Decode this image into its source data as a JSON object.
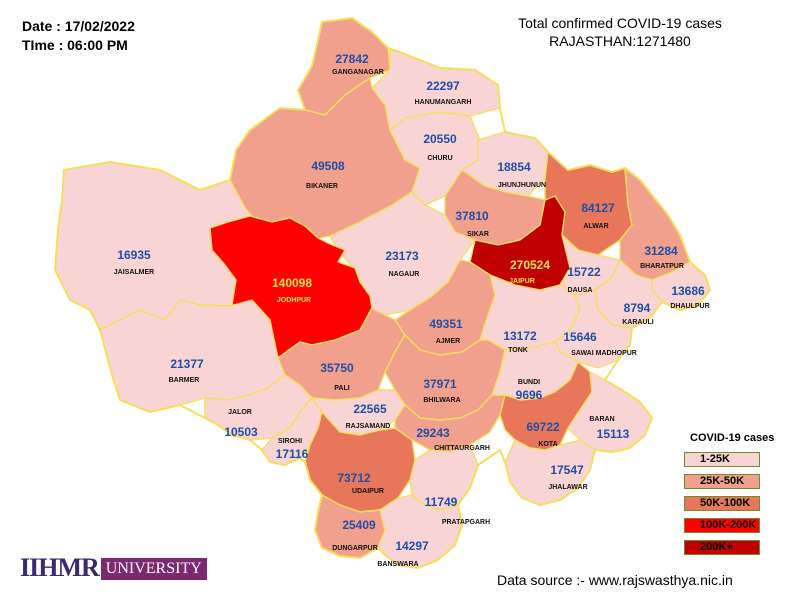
{
  "header": {
    "date": "Date : 17/02/2022",
    "time": "TIme : 06:00 PM",
    "title_line1": "Total confirmed COVID-19 cases",
    "title_line2": "RAJASTHAN:1271480"
  },
  "legend": {
    "title": "COVID-19 cases",
    "items": [
      {
        "label": "1-25K",
        "color": "#f9d4d4"
      },
      {
        "label": "25K-50K",
        "color": "#f0a08c"
      },
      {
        "label": "50K-100K",
        "color": "#e8765a"
      },
      {
        "label": "100K-200K",
        "color": "#ff0000"
      },
      {
        "label": "200K+",
        "color": "#c00000"
      }
    ]
  },
  "districts": [
    {
      "name": "GANGANAGAR",
      "cases": "27842",
      "color": "#f0a08c"
    },
    {
      "name": "HANUMANGARH",
      "cases": "22297",
      "color": "#f9d4d4"
    },
    {
      "name": "BIKANER",
      "cases": "49508",
      "color": "#f0a08c"
    },
    {
      "name": "CHURU",
      "cases": "20550",
      "color": "#f9d4d4"
    },
    {
      "name": "JHUNJHUNUN",
      "cases": "18854",
      "color": "#f9d4d4"
    },
    {
      "name": "SIKAR",
      "cases": "37810",
      "color": "#f0a08c"
    },
    {
      "name": "ALWAR",
      "cases": "84127",
      "color": "#e8765a"
    },
    {
      "name": "JAISALMER",
      "cases": "16935",
      "color": "#f9d4d4"
    },
    {
      "name": "NAGAUR",
      "cases": "23173",
      "color": "#f9d4d4"
    },
    {
      "name": "JAIPUR",
      "cases": "270524",
      "color": "#c00000"
    },
    {
      "name": "BHARATPUR",
      "cases": "31284",
      "color": "#f0a08c"
    },
    {
      "name": "JODHPUR",
      "cases": "140098",
      "color": "#ff0000"
    },
    {
      "name": "DAUSA",
      "cases": "15722",
      "color": "#f9d4d4"
    },
    {
      "name": "DHAULPUR",
      "cases": "13686",
      "color": "#f9d4d4"
    },
    {
      "name": "KARAULI",
      "cases": "8794",
      "color": "#f9d4d4"
    },
    {
      "name": "AJMER",
      "cases": "49351",
      "color": "#f0a08c"
    },
    {
      "name": "TONK",
      "cases": "13172",
      "color": "#f9d4d4"
    },
    {
      "name": "SAWAI MADHOPUR",
      "cases": "15646",
      "color": "#f9d4d4"
    },
    {
      "name": "BARMER",
      "cases": "21377",
      "color": "#f9d4d4"
    },
    {
      "name": "PALI",
      "cases": "35750",
      "color": "#f0a08c"
    },
    {
      "name": "BHILWARA",
      "cases": "37971",
      "color": "#f0a08c"
    },
    {
      "name": "BUNDI",
      "cases": "9696",
      "color": "#f9d4d4"
    },
    {
      "name": "JALOR",
      "cases": "10503",
      "color": "#f9d4d4"
    },
    {
      "name": "SIROHI",
      "cases": "17116",
      "color": "#f9d4d4"
    },
    {
      "name": "RAJSAMAND",
      "cases": "22565",
      "color": "#f9d4d4"
    },
    {
      "name": "CHITTAURGARH",
      "cases": "29243",
      "color": "#f0a08c"
    },
    {
      "name": "KOTA",
      "cases": "69722",
      "color": "#e8765a"
    },
    {
      "name": "BARAN",
      "cases": "15113",
      "color": "#f9d4d4"
    },
    {
      "name": "UDAIPUR",
      "cases": "73712",
      "color": "#e8765a"
    },
    {
      "name": "JHALAWAR",
      "cases": "17547",
      "color": "#f9d4d4"
    },
    {
      "name": "PRATAPGARH",
      "cases": "11749",
      "color": "#f9d4d4"
    },
    {
      "name": "DUNGARPUR",
      "cases": "25409",
      "color": "#f0a08c"
    },
    {
      "name": "BANSWARA",
      "cases": "14297",
      "color": "#f9d4d4"
    }
  ],
  "source": "Data source :- www.rajswasthya.nic.in",
  "logo": {
    "mark": "IIHMR",
    "word": "UNIVERSITY"
  }
}
